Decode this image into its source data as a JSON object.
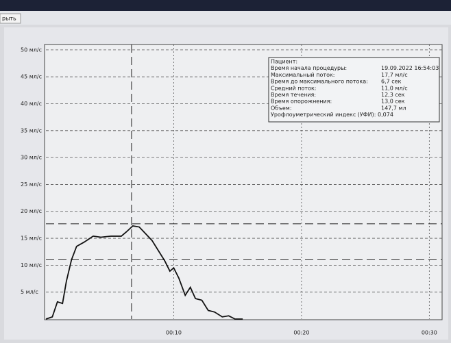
{
  "toolbar": {
    "button": "рыть"
  },
  "chart_data": {
    "type": "line",
    "x": [
      0,
      0.5,
      0.9,
      1.3,
      1.6,
      2.0,
      2.4,
      3.0,
      3.7,
      4.3,
      5.1,
      5.9,
      6.3,
      6.8,
      7.3,
      7.7,
      8.3,
      8.8,
      9.3,
      9.7,
      10.0,
      10.4,
      10.9,
      11.3,
      11.7,
      12.2,
      12.7,
      13.2,
      13.8,
      14.3,
      14.8,
      15.4
    ],
    "series": [
      {
        "color": "#111111",
        "values": [
          0,
          0.4,
          3.2,
          2.9,
          7,
          11,
          13.5,
          14.3,
          15.4,
          15.2,
          15.4,
          15.4,
          16.2,
          17.3,
          17.1,
          16.1,
          14.6,
          12.7,
          10.8,
          8.9,
          9.5,
          7.6,
          4.4,
          5.9,
          3.8,
          3.5,
          1.6,
          1.3,
          0.4,
          0.6,
          0,
          0
        ]
      }
    ],
    "xlim": [
      0,
      31
    ],
    "ylim": [
      0,
      51
    ],
    "xticks": [
      {
        "value": 10,
        "label": "00:10"
      },
      {
        "value": 20,
        "label": "00:20"
      },
      {
        "value": 30,
        "label": "00:30"
      }
    ],
    "yticks": [
      {
        "value": 5,
        "label": "5 мл/с"
      },
      {
        "value": 10,
        "label": "10 мл/с"
      },
      {
        "value": 15,
        "label": "15 мл/с"
      },
      {
        "value": 20,
        "label": "20 мл/с"
      },
      {
        "value": 25,
        "label": "25 мл/с"
      },
      {
        "value": 30,
        "label": "30 мл/с"
      },
      {
        "value": 35,
        "label": "35 мл/с"
      },
      {
        "value": 40,
        "label": "40 мл/с"
      },
      {
        "value": 45,
        "label": "45 мл/с"
      },
      {
        "value": 50,
        "label": "50 мл/с"
      }
    ],
    "grid": true,
    "hlines": [
      17.7,
      11.0
    ],
    "vline": 6.7,
    "info": [
      {
        "label": "Пациент:"
      },
      {
        "label": "Время начала процедуры:",
        "value": "19.09.2022 16:54:03"
      },
      {
        "label": "Максимальный поток:",
        "value": "17,7 мл/с"
      },
      {
        "label": "Время до максимального потока:",
        "value": "6,7 сек"
      },
      {
        "label": "Средний поток:",
        "value": "11,0 мл/с"
      },
      {
        "label": "Время течения:",
        "value": "12,3 сек"
      },
      {
        "label": "Время опорожнения:",
        "value": "13,0 сек"
      },
      {
        "label": "Объем:",
        "value": "147,7 мл"
      },
      {
        "label": "Урофлоуметрический индекс (УФИ): 0,074"
      }
    ]
  }
}
